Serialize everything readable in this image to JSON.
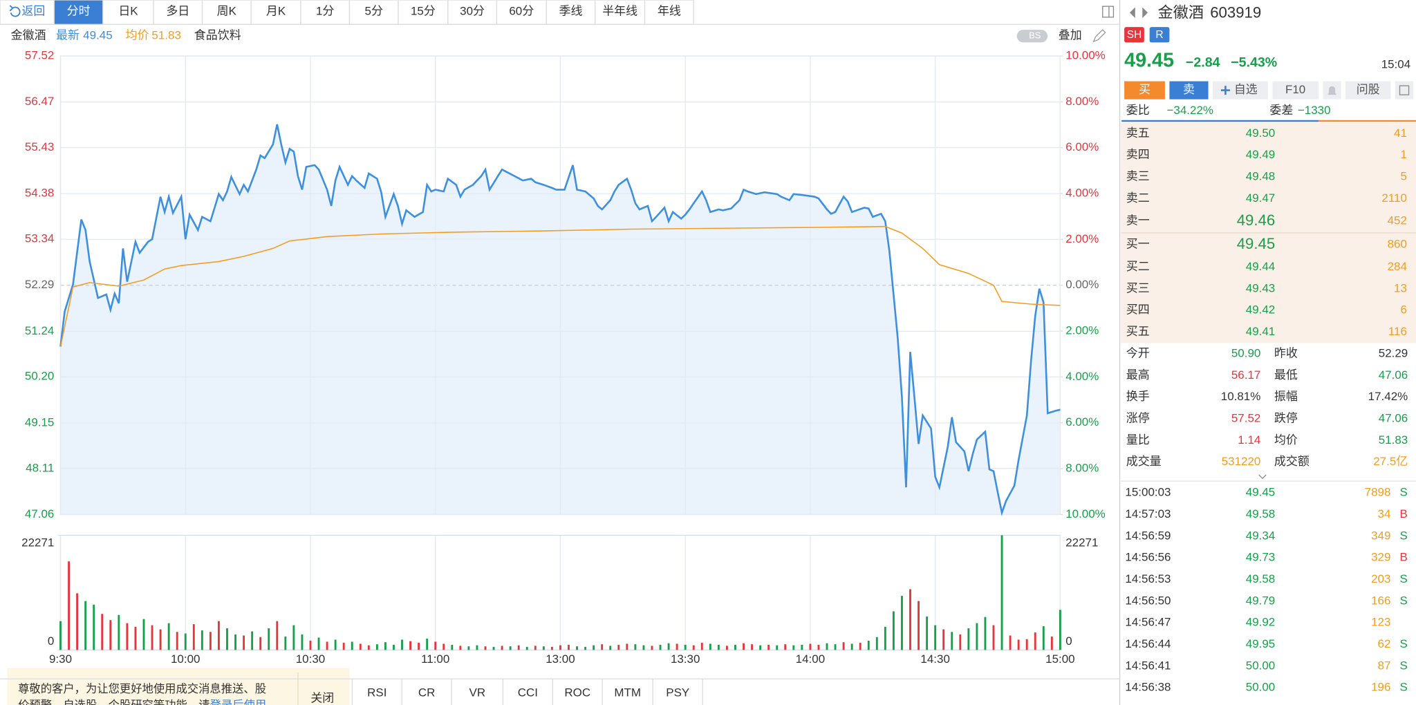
{
  "toolbar": {
    "back": "返回",
    "tabs": [
      "分时",
      "日K",
      "多日",
      "周K",
      "月K",
      "1分",
      "5分",
      "15分",
      "30分",
      "60分",
      "季线",
      "半年线",
      "年线"
    ]
  },
  "info": {
    "name": "金徽酒",
    "sector": "食品饮料",
    "bs": "BS",
    "overlay": "叠加"
  },
  "chart_data": [
    {
      "type": "line",
      "series": [
        {
          "name": "最新",
          "color": "#3d8fe0",
          "x": [
            0,
            1,
            3,
            5,
            6,
            7,
            9,
            11,
            12,
            13,
            14,
            15,
            16,
            18,
            19,
            21,
            22,
            24,
            25,
            26,
            27,
            29,
            30,
            31,
            33,
            34,
            36,
            38,
            39,
            40,
            41,
            43,
            44,
            45,
            47,
            48,
            49,
            51,
            52,
            53,
            54,
            55,
            56,
            57,
            58,
            59,
            61,
            62,
            64,
            65,
            66,
            67,
            69,
            70,
            71,
            73,
            74,
            76,
            77,
            78,
            80,
            81,
            82,
            83,
            85,
            87,
            88,
            89,
            90,
            92,
            93,
            95,
            96,
            97,
            99,
            101,
            102,
            103,
            105,
            106,
            107,
            109,
            111,
            113,
            114,
            116,
            118,
            119,
            121,
            123,
            124,
            126,
            128,
            129,
            130,
            132,
            133,
            134,
            136,
            137,
            138,
            139,
            141,
            142,
            143,
            145,
            146,
            147,
            149,
            150,
            151,
            152,
            154,
            155,
            156,
            158,
            159,
            161,
            163,
            164,
            165,
            167,
            169,
            172,
            173,
            175,
            176,
            178,
            181,
            182,
            184,
            185,
            186,
            188,
            189,
            190,
            193,
            194,
            195,
            197,
            198,
            199,
            201,
            202,
            203,
            204,
            205,
            206,
            207,
            209,
            210,
            211,
            213,
            214,
            215,
            217,
            218,
            219,
            220,
            222,
            223,
            224,
            225,
            226,
            227,
            229,
            230,
            232,
            233,
            234,
            235,
            236,
            237,
            239,
            240
          ],
          "values": [
            50.89,
            51.69,
            52.31,
            53.79,
            53.55,
            52.83,
            52.0,
            52.08,
            51.73,
            52.1,
            51.88,
            53.13,
            52.37,
            53.28,
            53.03,
            53.28,
            53.34,
            54.31,
            53.96,
            54.31,
            53.94,
            54.31,
            53.34,
            53.9,
            53.55,
            53.85,
            53.75,
            54.37,
            54.23,
            54.43,
            54.76,
            54.37,
            54.58,
            54.43,
            54.93,
            55.25,
            55.19,
            55.5,
            55.96,
            55.5,
            55.09,
            55.4,
            55.34,
            54.78,
            54.47,
            54.99,
            55.03,
            54.93,
            54.47,
            54.1,
            54.68,
            54.99,
            54.58,
            54.78,
            54.68,
            54.51,
            54.84,
            54.72,
            54.41,
            53.85,
            54.37,
            54.1,
            53.69,
            54.0,
            53.85,
            53.96,
            54.58,
            54.43,
            54.47,
            54.43,
            54.72,
            54.58,
            54.31,
            54.47,
            54.58,
            54.78,
            54.93,
            54.47,
            54.78,
            54.93,
            54.88,
            54.78,
            54.68,
            54.72,
            54.64,
            54.58,
            54.51,
            54.47,
            54.47,
            55.03,
            54.47,
            54.43,
            54.27,
            54.1,
            54.02,
            54.23,
            54.43,
            54.58,
            54.72,
            54.47,
            54.16,
            54.02,
            54.1,
            53.75,
            53.85,
            54.06,
            53.75,
            53.96,
            53.81,
            53.9,
            54.02,
            54.16,
            54.43,
            54.23,
            53.96,
            54.02,
            54.0,
            54.04,
            54.23,
            54.47,
            54.43,
            54.37,
            54.41,
            54.37,
            54.31,
            54.23,
            54.37,
            54.35,
            54.31,
            54.27,
            54.02,
            53.92,
            53.96,
            54.31,
            54.2,
            53.96,
            54.06,
            54.04,
            53.85,
            53.92,
            53.75,
            53.07,
            51.08,
            49.74,
            47.68,
            50.77,
            49.74,
            48.67,
            49.32,
            49.02,
            47.92,
            47.68,
            48.6,
            49.28,
            48.71,
            48.5,
            48.05,
            48.44,
            48.77,
            48.95,
            48.09,
            48.05,
            47.57,
            47.1,
            47.37,
            47.72,
            48.3,
            49.32,
            50.56,
            51.59,
            52.21,
            51.9,
            49.37,
            49.43,
            49.45
          ]
        },
        {
          "name": "均价",
          "color": "#f39c1f",
          "x": [
            0,
            3,
            7,
            14,
            20,
            25,
            29,
            38,
            44,
            51,
            55,
            64,
            77,
            94,
            116,
            137,
            159,
            181,
            198,
            202,
            207,
            211,
            218,
            224,
            226,
            233,
            240
          ],
          "values": [
            50.89,
            52.25,
            52.35,
            52.27,
            52.41,
            52.66,
            52.74,
            52.83,
            52.95,
            53.13,
            53.3,
            53.4,
            53.46,
            53.5,
            53.53,
            53.57,
            53.59,
            53.61,
            53.63,
            53.48,
            53.13,
            52.76,
            52.56,
            52.29,
            51.92,
            51.86,
            51.83
          ]
        }
      ],
      "xlim": [
        0,
        240
      ],
      "xticks": [
        {
          "value": 0,
          "label": "9:30"
        },
        {
          "value": 30,
          "label": "10:00"
        },
        {
          "value": 60,
          "label": "10:30"
        },
        {
          "value": 90,
          "label": "11:00"
        },
        {
          "value": 120,
          "label": "13:00"
        },
        {
          "value": 150,
          "label": "13:30"
        },
        {
          "value": 180,
          "label": "14:00"
        },
        {
          "value": 210,
          "label": "14:30"
        },
        {
          "value": 240,
          "label": "15:00"
        }
      ],
      "ylim": [
        47.06,
        57.52
      ],
      "yticks": [
        57.52,
        56.47,
        55.43,
        54.38,
        53.34,
        52.29,
        51.24,
        {
          "value": 50.2,
          "label": "50.20"
        },
        49.15,
        48.11,
        47.06
      ],
      "y2lim": [
        -10,
        10
      ],
      "y2ticks": [
        {
          "value": 10,
          "label": "10.00%"
        },
        {
          "value": 8,
          "label": "8.00%"
        },
        {
          "value": 6,
          "label": "6.00%"
        },
        {
          "value": 4,
          "label": "4.00%"
        },
        {
          "value": 2,
          "label": "2.00%"
        },
        {
          "value": 0,
          "label": "0.00%"
        },
        {
          "value": -2,
          "label": "2.00%"
        },
        {
          "value": -4,
          "label": "4.00%"
        },
        {
          "value": -6,
          "label": "6.00%"
        },
        {
          "value": -8,
          "label": "8.00%"
        },
        {
          "value": -10,
          "label": "10.00%"
        }
      ],
      "grid": true,
      "area_color": "#eaf3fc"
    },
    {
      "type": "bar",
      "x": [
        0,
        2,
        4,
        6,
        8,
        10,
        12,
        14,
        16,
        18,
        20,
        22,
        24,
        26,
        28,
        30,
        32,
        34,
        36,
        38,
        40,
        42,
        44,
        46,
        48,
        50,
        52,
        54,
        56,
        58,
        60,
        62,
        64,
        66,
        68,
        70,
        72,
        74,
        76,
        78,
        80,
        82,
        84,
        86,
        88,
        90,
        92,
        94,
        96,
        98,
        100,
        102,
        104,
        106,
        108,
        110,
        112,
        114,
        116,
        118,
        120,
        122,
        124,
        126,
        128,
        130,
        132,
        134,
        136,
        138,
        140,
        142,
        144,
        146,
        148,
        150,
        152,
        154,
        156,
        158,
        160,
        162,
        164,
        166,
        168,
        170,
        172,
        174,
        176,
        178,
        180,
        182,
        184,
        186,
        188,
        190,
        192,
        194,
        196,
        198,
        200,
        202,
        204,
        206,
        208,
        210,
        212,
        214,
        216,
        218,
        220,
        222,
        224,
        226,
        228,
        230,
        232,
        234,
        236,
        238,
        240
      ],
      "values": [
        5600,
        17200,
        11000,
        9500,
        8800,
        7000,
        5800,
        6800,
        5200,
        4500,
        6000,
        4800,
        4000,
        5200,
        3500,
        3200,
        5000,
        3800,
        3500,
        5600,
        4200,
        3000,
        2800,
        3600,
        2500,
        4200,
        5600,
        2600,
        4800,
        3000,
        1800,
        2400,
        1600,
        2000,
        1400,
        1600,
        1200,
        900,
        1100,
        1500,
        1000,
        2000,
        1700,
        1400,
        2200,
        1600,
        1200,
        1000,
        800,
        700,
        900,
        700,
        600,
        800,
        700,
        900,
        600,
        800,
        700,
        600,
        900,
        1000,
        700,
        600,
        900,
        1100,
        800,
        1000,
        1200,
        1100,
        900,
        800,
        1000,
        1300,
        1200,
        1000,
        900,
        1400,
        1200,
        1000,
        800,
        1000,
        1300,
        1100,
        900,
        1000,
        900,
        1100,
        900,
        1000,
        1200,
        1000,
        1300,
        1100,
        1500,
        1200,
        1400,
        1800,
        2500,
        4500,
        7500,
        10500,
        11800,
        9500,
        6500,
        4800,
        4000,
        3500,
        3000,
        4200,
        5200,
        6400,
        4800,
        22271,
        2800,
        2000,
        2100,
        3400,
        4600,
        2600,
        7800
      ],
      "colors": [
        "#17a04a",
        "#e8343b",
        "#e8343b",
        "#17a04a",
        "#17a04a",
        "#e8343b",
        "#e8343b",
        "#17a04a",
        "#e8343b",
        "#e8343b",
        "#17a04a",
        "#e8343b",
        "#e8343b",
        "#17a04a",
        "#e8343b",
        "#17a04a",
        "#e8343b",
        "#17a04a",
        "#e8343b",
        "#e8343b",
        "#17a04a",
        "#17a04a",
        "#e8343b",
        "#17a04a",
        "#e8343b",
        "#17a04a",
        "#e8343b",
        "#17a04a",
        "#17a04a",
        "#17a04a",
        "#e8343b",
        "#17a04a",
        "#e8343b",
        "#17a04a",
        "#e8343b",
        "#17a04a",
        "#e8343b",
        "#e8343b",
        "#17a04a",
        "#17a04a",
        "#17a04a",
        "#17a04a",
        "#e8343b",
        "#e8343b",
        "#17a04a",
        "#e8343b",
        "#e8343b",
        "#17a04a",
        "#e8343b",
        "#17a04a",
        "#17a04a",
        "#e8343b",
        "#17a04a",
        "#e8343b",
        "#17a04a",
        "#e8343b",
        "#17a04a",
        "#e8343b",
        "#17a04a",
        "#e8343b",
        "#e8343b",
        "#e8343b",
        "#17a04a",
        "#17a04a",
        "#17a04a",
        "#e8343b",
        "#17a04a",
        "#e8343b",
        "#e8343b",
        "#17a04a",
        "#17a04a",
        "#e8343b",
        "#17a04a",
        "#17a04a",
        "#e8343b",
        "#17a04a",
        "#e8343b",
        "#e8343b",
        "#17a04a",
        "#17a04a",
        "#e8343b",
        "#17a04a",
        "#e8343b",
        "#e8343b",
        "#17a04a",
        "#e8343b",
        "#17a04a",
        "#e8343b",
        "#17a04a",
        "#17a04a",
        "#e8343b",
        "#e8343b",
        "#17a04a",
        "#17a04a",
        "#e8343b",
        "#17a04a",
        "#e8343b",
        "#17a04a",
        "#17a04a",
        "#17a04a",
        "#17a04a",
        "#17a04a",
        "#e8343b",
        "#e8343b",
        "#17a04a",
        "#17a04a",
        "#e8343b",
        "#17a04a",
        "#e8343b",
        "#17a04a",
        "#17a04a",
        "#17a04a",
        "#e8343b",
        "#17a04a",
        "#e8343b",
        "#e8343b",
        "#e8343b",
        "#e8343b",
        "#17a04a",
        "#e8343b",
        "#17a04a"
      ],
      "xlim": [
        0,
        240
      ],
      "ylim": [
        0,
        22271
      ],
      "yticks": [
        0,
        22271
      ]
    }
  ],
  "bottom_tabs": [
    "RSI",
    "CR",
    "VR",
    "CCI",
    "ROC",
    "MTM",
    "PSY"
  ],
  "notice": {
    "lines": [
      "尊敬的客户，为让您更好地使用成交消息推送、股",
      "价预警、自选股、个股研究等功能，请"
    ],
    "link": "登录后使用",
    "close": "关闭"
  },
  "quote": {
    "name": "金徽酒",
    "code": "603919",
    "tags": [
      "SH",
      "R"
    ],
    "price": "49.45",
    "change": "−2.84",
    "pct": "−5.43%",
    "time": "15:04"
  },
  "actions": [
    "买",
    "卖",
    "自选",
    "F10",
    "问股"
  ],
  "ratio": {
    "label": "委比",
    "value": "−34.22%",
    "diff_label": "委差",
    "diff": "−1330"
  },
  "book": [
    [
      "卖五",
      "49.50",
      "41"
    ],
    [
      "卖四",
      "49.49",
      "1"
    ],
    [
      "卖三",
      "49.48",
      "5"
    ],
    [
      "卖二",
      "49.47",
      "2110"
    ],
    [
      "卖一",
      "49.46",
      "452"
    ],
    [
      "买一",
      "49.45",
      "860"
    ],
    [
      "买二",
      "49.44",
      "284"
    ],
    [
      "买三",
      "49.43",
      "13"
    ],
    [
      "买四",
      "49.42",
      "6"
    ],
    [
      "买五",
      "49.41",
      "116"
    ]
  ],
  "stats": [
    [
      "今开",
      "50.90",
      "昨收",
      "52.29"
    ],
    [
      "最高",
      "56.17",
      "最低",
      "47.06"
    ],
    [
      "换手",
      "10.81%",
      "振幅",
      "17.42%"
    ],
    [
      "涨停",
      "57.52",
      "跌停",
      "47.06"
    ],
    [
      "量比",
      "1.14",
      "均价",
      "51.83"
    ],
    [
      "成交量",
      "531220",
      "成交额",
      "27.5亿"
    ]
  ],
  "trades": [
    [
      "15:00:03",
      "49.45",
      "7898",
      "S"
    ],
    [
      "14:57:03",
      "49.58",
      "34",
      "B"
    ],
    [
      "14:56:59",
      "49.34",
      "349",
      "S"
    ],
    [
      "14:56:56",
      "49.73",
      "329",
      "B"
    ],
    [
      "14:56:53",
      "49.58",
      "203",
      "S"
    ],
    [
      "14:56:50",
      "49.79",
      "166",
      "S"
    ],
    [
      "14:56:47",
      "49.92",
      "123"
    ],
    [
      "14:56:44",
      "49.95",
      "62",
      "S"
    ],
    [
      "14:56:41",
      "50.00",
      "87",
      "S"
    ],
    [
      "14:56:38",
      "50.00",
      "196",
      "S"
    ]
  ]
}
